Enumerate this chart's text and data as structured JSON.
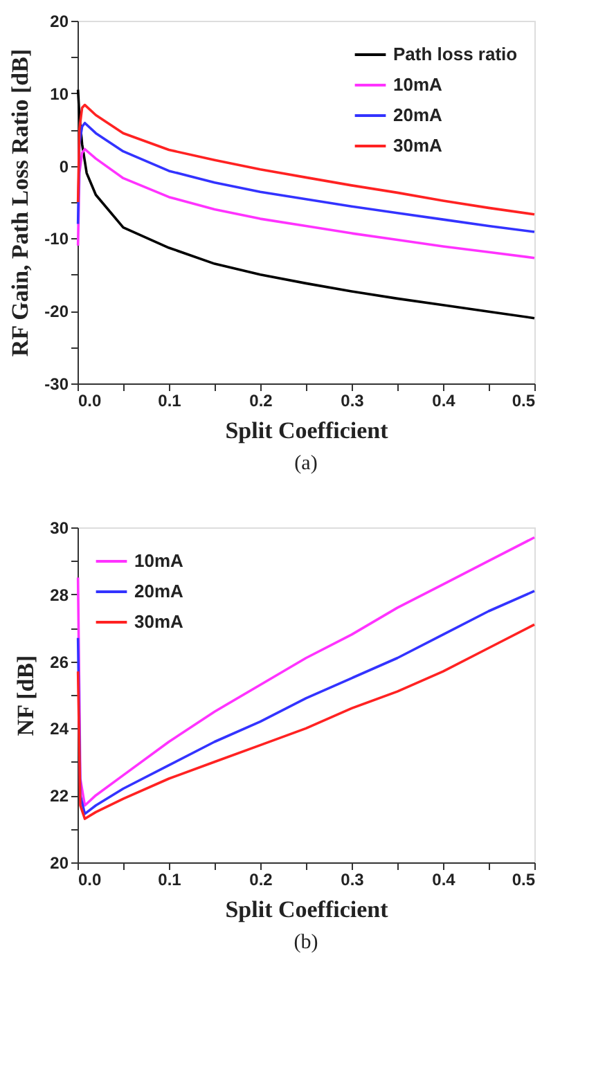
{
  "chart_data": [
    {
      "type": "line",
      "xlabel": "Split Coefficient",
      "ylabel": "RF Gain, Path Loss Ratio [dB]",
      "annotations": [
        "(a)"
      ],
      "xlim": [
        0,
        0.5
      ],
      "ylim": [
        -30,
        20
      ],
      "xticks": [
        {
          "value": 0,
          "label": "0.0"
        },
        {
          "value": 0.05,
          "label": null
        },
        0.1,
        {
          "value": 0.15,
          "label": null
        },
        0.2,
        {
          "value": 0.25,
          "label": null
        },
        0.3,
        {
          "value": 0.35,
          "label": null
        },
        0.4,
        {
          "value": 0.45,
          "label": null
        },
        0.5
      ],
      "yticks": [
        -30,
        {
          "value": -25,
          "label": null
        },
        -20,
        {
          "value": -15,
          "label": null
        },
        -10,
        {
          "value": -5,
          "label": null
        },
        0,
        {
          "value": 5,
          "label": null
        },
        10,
        {
          "value": 15,
          "label": null
        },
        20
      ],
      "legend": "top right",
      "grid": false,
      "marker": "none",
      "line_style": "solid",
      "series": [
        {
          "name": "Path loss ratio",
          "color": "#000000",
          "x": [
            0.0005,
            0.002,
            0.005,
            0.01,
            0.02,
            0.05,
            0.1,
            0.15,
            0.2,
            0.25,
            0.3,
            0.35,
            0.4,
            0.45,
            0.5
          ],
          "values": [
            10.5,
            7,
            3,
            -1,
            -4,
            -8.5,
            -11.3,
            -13.5,
            -15,
            -16.2,
            -17.3,
            -18.3,
            -19.2,
            -20.1,
            -21
          ]
        },
        {
          "name": "10mA",
          "color": "#ff33ff",
          "x": [
            0.0005,
            0.002,
            0.005,
            0.008,
            0.02,
            0.05,
            0.1,
            0.15,
            0.2,
            0.25,
            0.3,
            0.35,
            0.4,
            0.45,
            0.5
          ],
          "values": [
            -11,
            -1,
            1.8,
            2.3,
            1,
            -1.7,
            -4.3,
            -6,
            -7.3,
            -8.3,
            -9.3,
            -10.2,
            -11.1,
            -11.9,
            -12.7
          ]
        },
        {
          "name": "20mA",
          "color": "#3333ff",
          "x": [
            0.0005,
            0.002,
            0.005,
            0.008,
            0.02,
            0.05,
            0.1,
            0.15,
            0.2,
            0.25,
            0.3,
            0.35,
            0.4,
            0.45,
            0.5
          ],
          "values": [
            -8,
            3,
            5.4,
            5.9,
            4.5,
            2,
            -0.7,
            -2.3,
            -3.6,
            -4.6,
            -5.6,
            -6.5,
            -7.4,
            -8.3,
            -9.1
          ]
        },
        {
          "name": "30mA",
          "color": "#ff2222",
          "x": [
            0.0005,
            0.002,
            0.005,
            0.008,
            0.02,
            0.05,
            0.1,
            0.15,
            0.2,
            0.25,
            0.3,
            0.35,
            0.4,
            0.45,
            0.5
          ],
          "values": [
            -5,
            5,
            8,
            8.4,
            7,
            4.5,
            2.2,
            0.8,
            -0.5,
            -1.6,
            -2.7,
            -3.7,
            -4.8,
            -5.8,
            -6.7
          ]
        }
      ]
    },
    {
      "type": "line",
      "xlabel": "Split Coefficient",
      "ylabel": "NF [dB]",
      "annotations": [
        "(b)"
      ],
      "xlim": [
        0,
        0.5
      ],
      "ylim": [
        20,
        30
      ],
      "xticks": [
        {
          "value": 0,
          "label": "0.0"
        },
        {
          "value": 0.05,
          "label": null
        },
        0.1,
        {
          "value": 0.15,
          "label": null
        },
        0.2,
        {
          "value": 0.25,
          "label": null
        },
        0.3,
        {
          "value": 0.35,
          "label": null
        },
        0.4,
        {
          "value": 0.45,
          "label": null
        },
        0.5
      ],
      "yticks": [
        20,
        {
          "value": 21,
          "label": null
        },
        22,
        {
          "value": 23,
          "label": null
        },
        24,
        {
          "value": 25,
          "label": null
        },
        26,
        {
          "value": 27,
          "label": null
        },
        28,
        {
          "value": 29,
          "label": null
        },
        30
      ],
      "legend": "top left",
      "grid": false,
      "marker": "none",
      "line_style": "solid",
      "series": [
        {
          "name": "10mA",
          "color": "#ff33ff",
          "x": [
            0.0005,
            0.003,
            0.008,
            0.02,
            0.05,
            0.1,
            0.15,
            0.2,
            0.25,
            0.3,
            0.35,
            0.4,
            0.45,
            0.5
          ],
          "values": [
            28.5,
            22.5,
            21.7,
            22,
            22.6,
            23.6,
            24.5,
            25.3,
            26.1,
            26.8,
            27.6,
            28.3,
            29,
            29.7
          ]
        },
        {
          "name": "20mA",
          "color": "#3333ff",
          "x": [
            0.0005,
            0.003,
            0.008,
            0.02,
            0.05,
            0.1,
            0.15,
            0.2,
            0.25,
            0.3,
            0.35,
            0.4,
            0.45,
            0.5
          ],
          "values": [
            26.7,
            22,
            21.45,
            21.7,
            22.2,
            22.9,
            23.6,
            24.2,
            24.9,
            25.5,
            26.1,
            26.8,
            27.5,
            28.1
          ]
        },
        {
          "name": "30mA",
          "color": "#ff2222",
          "x": [
            0.0005,
            0.003,
            0.008,
            0.02,
            0.05,
            0.1,
            0.15,
            0.2,
            0.25,
            0.3,
            0.35,
            0.4,
            0.45,
            0.5
          ],
          "values": [
            25.7,
            21.7,
            21.3,
            21.5,
            21.9,
            22.5,
            23,
            23.5,
            24,
            24.6,
            25.1,
            25.7,
            26.4,
            27.1
          ]
        }
      ]
    }
  ]
}
